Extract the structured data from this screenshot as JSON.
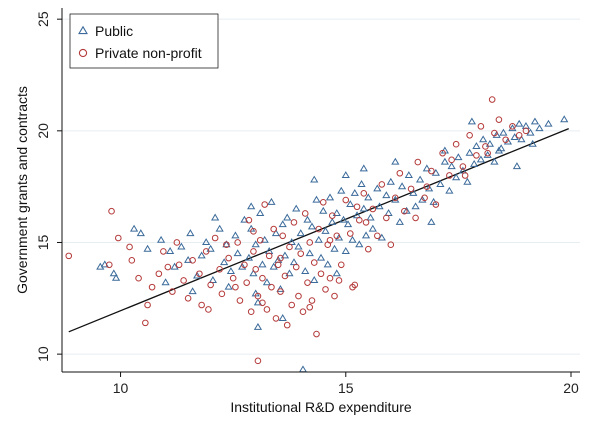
{
  "chart_data": {
    "type": "scatter",
    "xlabel": "Institutional R&D expenditure",
    "ylabel": "Government grants and contracts",
    "xlim": [
      8.7,
      20.2
    ],
    "ylim": [
      9.2,
      25.5
    ],
    "xticks": [
      10,
      15,
      20
    ],
    "yticks": [
      10,
      15,
      20,
      25
    ],
    "grid": "horizontal",
    "legend_position": "top-left",
    "fit_line": {
      "x": [
        8.85,
        19.95
      ],
      "y": [
        11.0,
        20.1
      ]
    },
    "series": [
      {
        "name": "Public",
        "marker": "triangle",
        "color": "#3a6a9a",
        "points": [
          [
            9.55,
            13.9
          ],
          [
            9.65,
            14.0
          ],
          [
            9.85,
            13.6
          ],
          [
            9.9,
            13.4
          ],
          [
            10.3,
            15.6
          ],
          [
            10.45,
            15.4
          ],
          [
            10.6,
            14.7
          ],
          [
            10.9,
            15.1
          ],
          [
            11.1,
            14.6
          ],
          [
            11.2,
            13.9
          ],
          [
            11.35,
            14.8
          ],
          [
            11.5,
            14.2
          ],
          [
            11.55,
            15.4
          ],
          [
            11.7,
            13.5
          ],
          [
            11.8,
            14.4
          ],
          [
            11.9,
            15.0
          ],
          [
            12.0,
            14.7
          ],
          [
            12.05,
            13.3
          ],
          [
            12.2,
            15.6
          ],
          [
            12.3,
            14.1
          ],
          [
            12.35,
            14.9
          ],
          [
            12.45,
            13.7
          ],
          [
            12.55,
            15.3
          ],
          [
            12.6,
            14.5
          ],
          [
            12.7,
            13.9
          ],
          [
            12.75,
            16.0
          ],
          [
            12.85,
            14.3
          ],
          [
            12.9,
            15.6
          ],
          [
            12.95,
            13.6
          ],
          [
            13.0,
            14.9
          ],
          [
            13.05,
            12.3
          ],
          [
            13.1,
            16.3
          ],
          [
            13.15,
            14.0
          ],
          [
            13.2,
            15.1
          ],
          [
            13.25,
            13.2
          ],
          [
            13.3,
            14.6
          ],
          [
            13.35,
            16.8
          ],
          [
            13.4,
            13.9
          ],
          [
            13.45,
            15.4
          ],
          [
            13.5,
            14.2
          ],
          [
            13.55,
            12.9
          ],
          [
            13.6,
            15.8
          ],
          [
            13.65,
            14.4
          ],
          [
            13.7,
            16.1
          ],
          [
            13.75,
            13.6
          ],
          [
            13.8,
            15.0
          ],
          [
            13.85,
            14.1
          ],
          [
            13.9,
            16.5
          ],
          [
            13.95,
            14.8
          ],
          [
            14.0,
            15.4
          ],
          [
            14.05,
            9.3
          ],
          [
            14.1,
            13.7
          ],
          [
            14.15,
            16.0
          ],
          [
            14.2,
            14.5
          ],
          [
            14.25,
            15.7
          ],
          [
            14.3,
            13.3
          ],
          [
            14.35,
            16.9
          ],
          [
            14.4,
            15.1
          ],
          [
            14.45,
            14.3
          ],
          [
            14.5,
            16.4
          ],
          [
            14.55,
            15.5
          ],
          [
            14.6,
            14.0
          ],
          [
            14.65,
            17.0
          ],
          [
            14.7,
            15.9
          ],
          [
            14.75,
            14.7
          ],
          [
            14.8,
            16.3
          ],
          [
            14.85,
            15.2
          ],
          [
            14.9,
            17.3
          ],
          [
            14.95,
            16.0
          ],
          [
            15.0,
            14.6
          ],
          [
            15.05,
            15.8
          ],
          [
            15.1,
            16.7
          ],
          [
            15.15,
            15.1
          ],
          [
            15.2,
            17.2
          ],
          [
            15.25,
            16.2
          ],
          [
            15.3,
            14.9
          ],
          [
            15.35,
            17.6
          ],
          [
            15.4,
            16.5
          ],
          [
            15.45,
            15.3
          ],
          [
            15.5,
            17.0
          ],
          [
            15.55,
            16.1
          ],
          [
            15.6,
            15.6
          ],
          [
            15.7,
            17.4
          ],
          [
            15.75,
            16.6
          ],
          [
            15.8,
            15.2
          ],
          [
            15.9,
            17.1
          ],
          [
            15.95,
            16.3
          ],
          [
            16.0,
            17.7
          ],
          [
            16.1,
            16.9
          ],
          [
            16.2,
            15.9
          ],
          [
            16.25,
            17.5
          ],
          [
            16.35,
            16.4
          ],
          [
            16.4,
            18.0
          ],
          [
            16.5,
            17.2
          ],
          [
            16.55,
            16.6
          ],
          [
            16.65,
            17.8
          ],
          [
            16.7,
            16.9
          ],
          [
            16.8,
            18.3
          ],
          [
            16.85,
            17.4
          ],
          [
            16.95,
            16.8
          ],
          [
            17.0,
            18.1
          ],
          [
            17.1,
            17.6
          ],
          [
            17.2,
            18.6
          ],
          [
            17.3,
            17.3
          ],
          [
            17.35,
            18.4
          ],
          [
            17.45,
            17.9
          ],
          [
            17.5,
            18.8
          ],
          [
            17.6,
            18.2
          ],
          [
            17.7,
            17.7
          ],
          [
            17.75,
            19.0
          ],
          [
            17.85,
            18.5
          ],
          [
            17.9,
            19.3
          ],
          [
            18.0,
            18.7
          ],
          [
            18.05,
            19.6
          ],
          [
            18.15,
            18.9
          ],
          [
            18.2,
            19.4
          ],
          [
            18.3,
            18.6
          ],
          [
            18.35,
            19.8
          ],
          [
            18.45,
            19.2
          ],
          [
            18.5,
            19.9
          ],
          [
            18.6,
            19.5
          ],
          [
            18.7,
            20.1
          ],
          [
            18.75,
            19.7
          ],
          [
            18.85,
            20.3
          ],
          [
            18.9,
            19.6
          ],
          [
            19.0,
            20.2
          ],
          [
            19.1,
            19.9
          ],
          [
            19.2,
            20.4
          ],
          [
            19.3,
            20.1
          ],
          [
            19.5,
            20.3
          ],
          [
            19.85,
            20.5
          ],
          [
            11.0,
            13.2
          ],
          [
            12.1,
            16.1
          ],
          [
            13.0,
            12.7
          ],
          [
            13.6,
            11.6
          ],
          [
            14.3,
            17.8
          ],
          [
            15.0,
            18.0
          ],
          [
            12.4,
            13.0
          ],
          [
            14.8,
            13.6
          ],
          [
            16.1,
            18.6
          ],
          [
            17.2,
            19.1
          ],
          [
            18.8,
            18.4
          ],
          [
            11.6,
            12.8
          ],
          [
            12.9,
            16.6
          ],
          [
            15.4,
            18.3
          ],
          [
            13.05,
            11.2
          ],
          [
            16.9,
            15.9
          ],
          [
            17.8,
            20.4
          ],
          [
            18.4,
            19.1
          ],
          [
            19.15,
            19.4
          ]
        ]
      },
      {
        "name": "Private non-profit",
        "marker": "circle",
        "color": "#b53a3a",
        "points": [
          [
            8.85,
            14.4
          ],
          [
            9.75,
            14.0
          ],
          [
            9.8,
            16.4
          ],
          [
            9.95,
            15.2
          ],
          [
            10.2,
            14.8
          ],
          [
            10.25,
            14.2
          ],
          [
            10.4,
            13.4
          ],
          [
            10.55,
            11.4
          ],
          [
            10.6,
            12.2
          ],
          [
            10.7,
            13.0
          ],
          [
            10.95,
            14.6
          ],
          [
            11.05,
            13.9
          ],
          [
            11.15,
            12.8
          ],
          [
            11.25,
            15.0
          ],
          [
            11.4,
            13.3
          ],
          [
            11.5,
            12.5
          ],
          [
            11.6,
            14.2
          ],
          [
            11.75,
            13.6
          ],
          [
            11.8,
            12.2
          ],
          [
            11.9,
            14.6
          ],
          [
            12.0,
            13.1
          ],
          [
            12.1,
            15.2
          ],
          [
            12.2,
            13.8
          ],
          [
            12.25,
            12.7
          ],
          [
            12.4,
            14.3
          ],
          [
            12.5,
            13.4
          ],
          [
            12.6,
            15.0
          ],
          [
            12.65,
            12.4
          ],
          [
            12.75,
            14.0
          ],
          [
            12.8,
            13.2
          ],
          [
            12.85,
            16.0
          ],
          [
            12.9,
            11.9
          ],
          [
            12.95,
            14.6
          ],
          [
            13.0,
            13.8
          ],
          [
            13.05,
            12.6
          ],
          [
            13.1,
            15.1
          ],
          [
            13.15,
            13.4
          ],
          [
            13.2,
            16.7
          ],
          [
            13.25,
            12.0
          ],
          [
            13.3,
            14.4
          ],
          [
            13.35,
            13.0
          ],
          [
            13.4,
            15.6
          ],
          [
            13.45,
            11.6
          ],
          [
            13.5,
            14.0
          ],
          [
            13.55,
            12.8
          ],
          [
            13.6,
            15.3
          ],
          [
            13.65,
            13.5
          ],
          [
            13.7,
            11.3
          ],
          [
            13.75,
            14.8
          ],
          [
            13.8,
            12.2
          ],
          [
            13.85,
            15.9
          ],
          [
            13.9,
            13.9
          ],
          [
            13.95,
            12.6
          ],
          [
            14.0,
            14.5
          ],
          [
            14.05,
            11.9
          ],
          [
            14.1,
            16.3
          ],
          [
            14.15,
            13.2
          ],
          [
            14.2,
            15.0
          ],
          [
            14.25,
            12.4
          ],
          [
            14.3,
            14.1
          ],
          [
            14.35,
            10.9
          ],
          [
            14.4,
            15.6
          ],
          [
            14.45,
            13.6
          ],
          [
            14.5,
            16.8
          ],
          [
            14.55,
            12.9
          ],
          [
            14.6,
            14.9
          ],
          [
            14.65,
            13.4
          ],
          [
            14.7,
            16.2
          ],
          [
            14.75,
            12.6
          ],
          [
            14.8,
            15.3
          ],
          [
            14.9,
            14.0
          ],
          [
            15.0,
            16.9
          ],
          [
            15.1,
            15.4
          ],
          [
            15.2,
            13.1
          ],
          [
            15.3,
            16.0
          ],
          [
            15.4,
            17.2
          ],
          [
            15.5,
            14.7
          ],
          [
            15.6,
            16.5
          ],
          [
            15.7,
            15.3
          ],
          [
            15.8,
            17.6
          ],
          [
            15.9,
            16.1
          ],
          [
            16.0,
            14.9
          ],
          [
            16.1,
            17.0
          ],
          [
            16.2,
            18.1
          ],
          [
            16.3,
            16.4
          ],
          [
            16.45,
            17.4
          ],
          [
            16.6,
            18.6
          ],
          [
            16.75,
            17.0
          ],
          [
            16.9,
            18.2
          ],
          [
            17.0,
            16.7
          ],
          [
            17.15,
            19.0
          ],
          [
            17.3,
            18.0
          ],
          [
            17.45,
            19.4
          ],
          [
            17.6,
            18.4
          ],
          [
            17.75,
            19.8
          ],
          [
            17.9,
            18.9
          ],
          [
            18.0,
            20.2
          ],
          [
            18.1,
            19.3
          ],
          [
            18.25,
            21.4
          ],
          [
            18.3,
            19.9
          ],
          [
            18.4,
            20.5
          ],
          [
            18.55,
            19.6
          ],
          [
            18.7,
            20.2
          ],
          [
            18.85,
            19.8
          ],
          [
            19.0,
            20.0
          ],
          [
            13.05,
            9.7
          ],
          [
            14.2,
            12.1
          ],
          [
            15.15,
            13.0
          ],
          [
            11.3,
            14.0
          ],
          [
            12.35,
            14.9
          ],
          [
            16.55,
            16.1
          ],
          [
            17.35,
            18.7
          ],
          [
            14.85,
            13.3
          ],
          [
            13.55,
            14.3
          ],
          [
            12.55,
            13.0
          ],
          [
            15.45,
            15.9
          ],
          [
            16.8,
            17.5
          ],
          [
            17.65,
            18.0
          ],
          [
            11.95,
            12.0
          ],
          [
            10.85,
            13.6
          ],
          [
            13.15,
            12.3
          ],
          [
            14.65,
            15.1
          ],
          [
            15.25,
            16.6
          ],
          [
            18.15,
            19.0
          ],
          [
            12.95,
            15.5
          ]
        ]
      }
    ]
  }
}
